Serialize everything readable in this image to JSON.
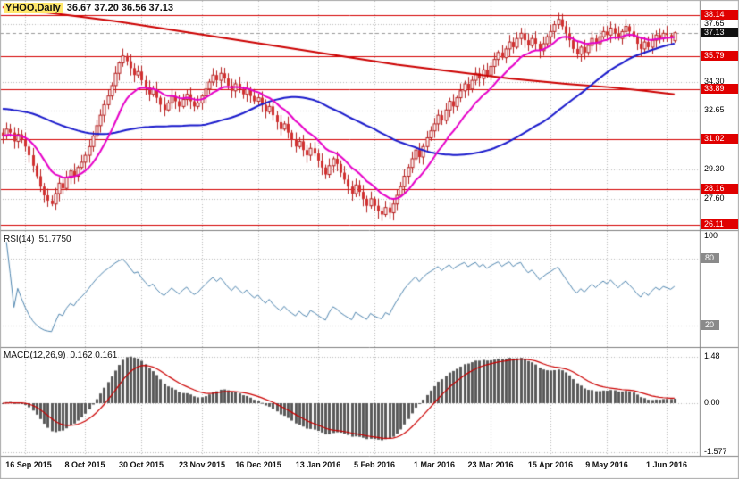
{
  "chart_data": {
    "type": "candlestick",
    "symbol": "YHOO",
    "timeframe": "Daily",
    "title": "YHOO,Daily",
    "ohlc_text": "36.67 37.20 36.56 37.13",
    "last_ohlc": {
      "open": 36.67,
      "high": 37.2,
      "low": 36.56,
      "close": 37.13
    },
    "x_labels": [
      "16 Sep 2015",
      "8 Oct 2015",
      "30 Oct 2015",
      "23 Nov 2015",
      "16 Dec 2015",
      "13 Jan 2016",
      "5 Feb 2016",
      "1 Mar 2016",
      "23 Mar 2016",
      "15 Apr 2016",
      "9 May 2016",
      "1 Jun 2016"
    ],
    "tick_bars": [
      6,
      22,
      37,
      53,
      68,
      84,
      99,
      115,
      130,
      146,
      161,
      177
    ],
    "closes": [
      31.2,
      31.6,
      31.4,
      30.9,
      31.3,
      31.0,
      30.6,
      30.1,
      29.5,
      28.9,
      28.3,
      27.8,
      27.5,
      27.3,
      27.9,
      28.5,
      28.2,
      28.8,
      29.2,
      28.9,
      29.4,
      29.7,
      30.1,
      30.6,
      31.2,
      31.8,
      32.4,
      33.0,
      33.5,
      34.1,
      34.8,
      35.4,
      35.8,
      35.5,
      35.1,
      34.7,
      34.9,
      34.4,
      34.0,
      33.6,
      33.9,
      33.4,
      33.0,
      32.7,
      33.1,
      33.5,
      33.2,
      32.9,
      33.3,
      33.6,
      33.2,
      32.9,
      33.1,
      33.5,
      33.9,
      34.3,
      34.7,
      34.4,
      34.8,
      34.5,
      34.1,
      33.8,
      34.2,
      33.9,
      33.6,
      33.9,
      33.5,
      33.2,
      33.4,
      33.0,
      32.6,
      32.9,
      32.4,
      32.0,
      31.6,
      31.9,
      31.4,
      31.0,
      30.6,
      30.9,
      30.4,
      30.1,
      30.5,
      30.2,
      29.8,
      29.4,
      29.0,
      29.5,
      29.9,
      29.6,
      29.1,
      28.7,
      28.3,
      27.9,
      28.4,
      28.0,
      27.6,
      27.2,
      27.6,
      27.2,
      26.9,
      26.7,
      27.1,
      26.8,
      27.3,
      27.8,
      28.3,
      28.9,
      29.4,
      29.9,
      30.4,
      30.0,
      30.6,
      31.1,
      31.5,
      31.9,
      32.4,
      32.1,
      32.7,
      33.2,
      32.9,
      33.4,
      33.8,
      34.2,
      33.9,
      34.4,
      34.8,
      34.5,
      35.0,
      34.7,
      35.2,
      35.6,
      36.0,
      35.7,
      36.2,
      36.6,
      36.3,
      36.8,
      37.1,
      36.7,
      36.4,
      36.8,
      36.5,
      36.1,
      36.5,
      36.9,
      37.2,
      37.6,
      37.9,
      37.5,
      37.1,
      36.7,
      36.2,
      35.9,
      36.3,
      36.0,
      36.4,
      36.8,
      36.5,
      36.9,
      37.2,
      37.0,
      37.4,
      37.1,
      36.8,
      37.2,
      37.5,
      37.2,
      36.9,
      36.5,
      36.2,
      36.6,
      36.3,
      36.7,
      37.0,
      36.8,
      37.1,
      37.0,
      36.9,
      37.13
    ],
    "price_axis": {
      "labels": [
        {
          "text": "38.14",
          "value": 38.14,
          "style": "red"
        },
        {
          "text": "37.65",
          "value": 37.65,
          "style": "plain"
        },
        {
          "text": "37.13",
          "value": 37.13,
          "style": "black"
        },
        {
          "text": "35.79",
          "value": 35.79,
          "style": "red"
        },
        {
          "text": "34.30",
          "value": 34.3,
          "style": "plain"
        },
        {
          "text": "33.89",
          "value": 33.89,
          "style": "red"
        },
        {
          "text": "32.65",
          "value": 32.65,
          "style": "plain"
        },
        {
          "text": "31.02",
          "value": 31.02,
          "style": "red"
        },
        {
          "text": "29.30",
          "value": 29.3,
          "style": "plain"
        },
        {
          "text": "28.16",
          "value": 28.16,
          "style": "red"
        },
        {
          "text": "27.60",
          "value": 27.6,
          "style": "plain"
        },
        {
          "text": "26.11",
          "value": 26.11,
          "style": "red"
        }
      ],
      "red_levels": [
        38.14,
        35.79,
        33.89,
        31.02,
        28.16,
        26.11
      ],
      "grid_levels": [
        37.65,
        34.3,
        32.65,
        29.3,
        27.6
      ],
      "current_price": 37.13,
      "level_color": "#d40000"
    },
    "candle_colors": {
      "bull_fill": "#ffffff",
      "bear_fill": "#d13030",
      "outline": "#b51f1f"
    },
    "moving_averages": {
      "fast": {
        "type": "ema",
        "period": 13,
        "color": "#e600c8"
      },
      "mid": {
        "type": "sma",
        "period": 55,
        "seed": 32.8,
        "color": "#1a1acc"
      },
      "long": {
        "color": "#cc0000",
        "anchors": [
          [
            0,
            38.6
          ],
          [
            15,
            38.2
          ],
          [
            30,
            37.8
          ],
          [
            45,
            37.3
          ],
          [
            60,
            36.8
          ],
          [
            75,
            36.3
          ],
          [
            90,
            35.8
          ],
          [
            105,
            35.3
          ],
          [
            120,
            34.9
          ],
          [
            135,
            34.5
          ],
          [
            150,
            34.2
          ],
          [
            162,
            34.0
          ],
          [
            171,
            33.8
          ],
          [
            179,
            33.6
          ]
        ]
      }
    },
    "rsi": {
      "label": "RSI(14)",
      "period": 14,
      "value_text": "51.7750",
      "color": "#4f86b0",
      "levels": [
        {
          "text": "100",
          "value": 100,
          "style": "plain"
        },
        {
          "text": "80",
          "value": 80,
          "style": "gray"
        },
        {
          "text": "20",
          "value": 20,
          "style": "gray"
        }
      ],
      "dotted_levels": [
        80,
        20
      ]
    },
    "macd": {
      "label": "MACD(12,26,9)",
      "fast": 12,
      "slow": 26,
      "signal": 9,
      "values_text": "0.162 0.161",
      "hist_color": "#5a5a5a",
      "signal_color": "#cc0000",
      "axis_labels": [
        {
          "text": "1.48",
          "value": 1.48,
          "style": "plain"
        },
        {
          "text": "0.00",
          "value": 0,
          "style": "plain"
        },
        {
          "text": "-1.577",
          "value": -1.577,
          "style": "plain"
        }
      ]
    }
  },
  "colors": {
    "grid": "#b9b9b9",
    "separator": "#808080",
    "background": "#ffffff",
    "title_highlight": "#ffe76a"
  }
}
